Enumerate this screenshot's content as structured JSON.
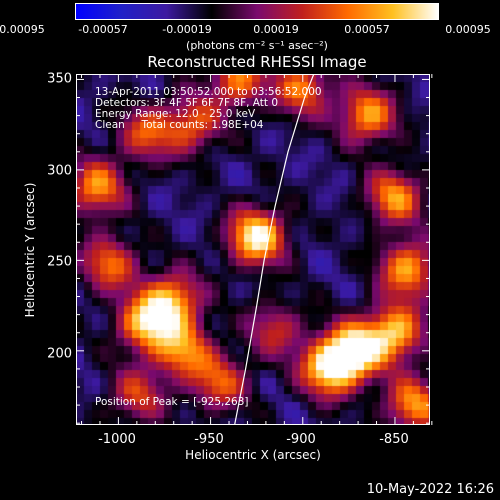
{
  "colorbar": {
    "ticks": [
      "-0.00095",
      "-0.00057",
      "-0.00019",
      "0.00019",
      "0.00057",
      "0.00095"
    ],
    "units": "(photons cm⁻² s⁻¹ asec⁻²)",
    "colors": [
      "#0000ff",
      "#2020c8",
      "#3d1aa0",
      "#000000",
      "#7a0a6e",
      "#c0201e",
      "#ff6a00",
      "#ffc020",
      "#ffffff"
    ]
  },
  "info": {
    "line1": "13-Apr-2011 03:50:52.000 to 03:56:52.000",
    "line2": "Detectors: 3F 4F 5F 6F 7F 8F, Att 0",
    "line3": "Energy Range: 12.0 - 25.0 keV",
    "line4": "Clean     Total counts: 1.98E+04",
    "peak": "Position of Peak = [-925,263]"
  },
  "timestamp": "10-May-2022 16:26",
  "chart_data": {
    "type": "heatmap",
    "title": "Reconstructed RHESSI Image",
    "xlabel": "Heliocentric X (arcsec)",
    "ylabel": "Heliocentric Y (arcsec)",
    "xlim": [
      -1023,
      -831
    ],
    "ylim": [
      159,
      353
    ],
    "x_ticks": [
      "-1000",
      "-950",
      "-900",
      "-850"
    ],
    "y_ticks": [
      "200",
      "250",
      "300",
      "350"
    ],
    "x_tick_values": [
      -1000,
      -950,
      -900,
      -850
    ],
    "y_tick_values": [
      200,
      250,
      300,
      350
    ],
    "peak_position": [
      -925,
      263
    ],
    "limb_curve": [
      [
        -937,
        159
      ],
      [
        -931,
        190
      ],
      [
        -925,
        225
      ],
      [
        -921,
        250
      ],
      [
        -915,
        280
      ],
      [
        -908,
        310
      ],
      [
        -899,
        340
      ],
      [
        -894,
        353
      ]
    ],
    "sources": [
      {
        "x": -925,
        "y": 263,
        "intensity": 0.95
      },
      {
        "x": -872,
        "y": 200,
        "intensity": 0.88
      },
      {
        "x": -886,
        "y": 190,
        "intensity": 0.8
      },
      {
        "x": -850,
        "y": 210,
        "intensity": 0.72
      },
      {
        "x": -843,
        "y": 245,
        "intensity": 0.62
      },
      {
        "x": -850,
        "y": 285,
        "intensity": 0.55
      },
      {
        "x": -865,
        "y": 330,
        "intensity": 0.6
      },
      {
        "x": -840,
        "y": 170,
        "intensity": 0.55
      },
      {
        "x": -985,
        "y": 215,
        "intensity": 0.72
      },
      {
        "x": -970,
        "y": 228,
        "intensity": 0.6
      },
      {
        "x": -965,
        "y": 200,
        "intensity": 0.5
      },
      {
        "x": -1012,
        "y": 290,
        "intensity": 0.55
      },
      {
        "x": -1005,
        "y": 248,
        "intensity": 0.42
      },
      {
        "x": -960,
        "y": 325,
        "intensity": 0.38
      },
      {
        "x": -985,
        "y": 320,
        "intensity": 0.32
      },
      {
        "x": -935,
        "y": 350,
        "intensity": 0.48
      },
      {
        "x": -900,
        "y": 345,
        "intensity": 0.45
      },
      {
        "x": -945,
        "y": 182,
        "intensity": 0.35
      },
      {
        "x": -990,
        "y": 175,
        "intensity": 0.25
      },
      {
        "x": -915,
        "y": 212,
        "intensity": 0.2
      }
    ],
    "background_level": -0.4
  }
}
